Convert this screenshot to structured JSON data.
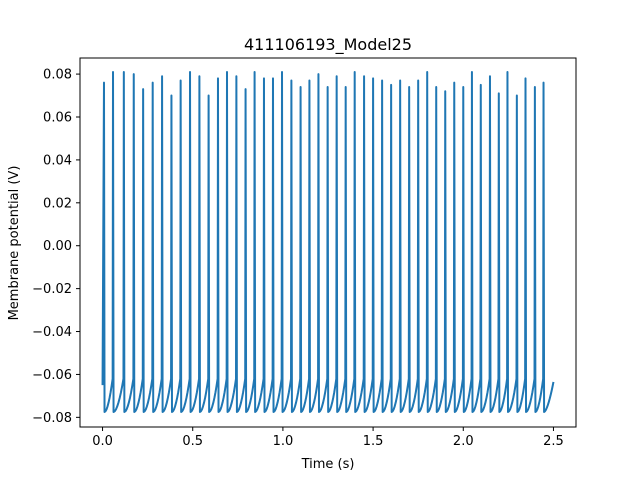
{
  "chart_data": {
    "type": "line",
    "title": "411106193_Model25",
    "xlabel": "Time (s)",
    "ylabel": "Membrane potential (V)",
    "xlim": [
      -0.125,
      2.625
    ],
    "ylim": [
      -0.0845,
      0.0875
    ],
    "x_ticks": [
      0.0,
      0.5,
      1.0,
      1.5,
      2.0,
      2.5
    ],
    "x_tick_labels": [
      "0.0",
      "0.5",
      "1.0",
      "1.5",
      "2.0",
      "2.5"
    ],
    "y_ticks": [
      -0.08,
      -0.06,
      -0.04,
      -0.02,
      0.0,
      0.02,
      0.04,
      0.06,
      0.08
    ],
    "y_tick_labels": [
      "−0.08",
      "−0.06",
      "−0.04",
      "−0.02",
      "0.00",
      "0.02",
      "0.04",
      "0.06",
      "0.08"
    ],
    "grid": false,
    "line_color": "#1f77b4",
    "series": [
      {
        "start_time": 0.0,
        "start_value": -0.065,
        "end_time": 2.5,
        "end_value": -0.0635,
        "trough_value": -0.0775,
        "spike_times": [
          0.008,
          0.058,
          0.118,
          0.173,
          0.225,
          0.278,
          0.33,
          0.382,
          0.433,
          0.485,
          0.537,
          0.588,
          0.64,
          0.69,
          0.742,
          0.793,
          0.843,
          0.895,
          0.945,
          0.995,
          1.047,
          1.098,
          1.147,
          1.197,
          1.248,
          1.298,
          1.348,
          1.398,
          1.45,
          1.5,
          1.55,
          1.6,
          1.65,
          1.7,
          1.75,
          1.8,
          1.85,
          1.9,
          1.95,
          2.0,
          2.048,
          2.097,
          2.148,
          2.197,
          2.245,
          2.297,
          2.345,
          2.397,
          2.445
        ],
        "spike_peaks": [
          0.076,
          0.081,
          0.081,
          0.08,
          0.073,
          0.076,
          0.079,
          0.07,
          0.077,
          0.081,
          0.079,
          0.07,
          0.078,
          0.081,
          0.079,
          0.073,
          0.081,
          0.078,
          0.078,
          0.081,
          0.077,
          0.074,
          0.077,
          0.08,
          0.074,
          0.079,
          0.074,
          0.081,
          0.079,
          0.078,
          0.077,
          0.075,
          0.077,
          0.074,
          0.077,
          0.081,
          0.074,
          0.072,
          0.076,
          0.074,
          0.081,
          0.075,
          0.079,
          0.071,
          0.081,
          0.07,
          0.078,
          0.074,
          0.076
        ]
      }
    ]
  }
}
